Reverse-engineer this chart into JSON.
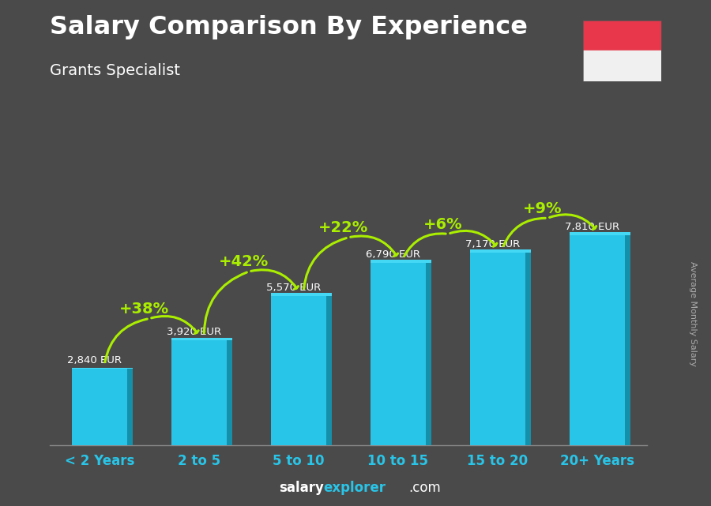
{
  "title": "Salary Comparison By Experience",
  "subtitle": "Grants Specialist",
  "categories": [
    "< 2 Years",
    "2 to 5",
    "5 to 10",
    "10 to 15",
    "15 to 20",
    "20+ Years"
  ],
  "values": [
    2840,
    3920,
    5570,
    6790,
    7170,
    7810
  ],
  "bar_color_main": "#29c5e8",
  "bar_color_right": "#1590aa",
  "bar_color_top": "#45d8f5",
  "pct_changes": [
    "+38%",
    "+42%",
    "+22%",
    "+6%",
    "+9%"
  ],
  "salary_labels": [
    "2,840 EUR",
    "3,920 EUR",
    "5,570 EUR",
    "6,790 EUR",
    "7,170 EUR",
    "7,810 EUR"
  ],
  "title_color": "#ffffff",
  "subtitle_color": "#ffffff",
  "label_color": "#ffffff",
  "pct_color": "#aaee00",
  "bg_color": "#4a4a4a",
  "ylabel": "Average Monthly Salary",
  "footer_salary": "salary",
  "footer_explorer": "explorer",
  "footer_com": ".com",
  "footer_color_salary": "#ffffff",
  "footer_color_explorer": "#29c5e8",
  "footer_color_com": "#ffffff",
  "ymax": 9800,
  "flag_red": "#e8374a",
  "flag_white": "#f0f0f0",
  "xtick_color": "#29c5e8",
  "ylabel_color": "#aaaaaa",
  "salary_label_offsets": [
    0,
    0,
    0,
    0,
    0,
    0
  ]
}
